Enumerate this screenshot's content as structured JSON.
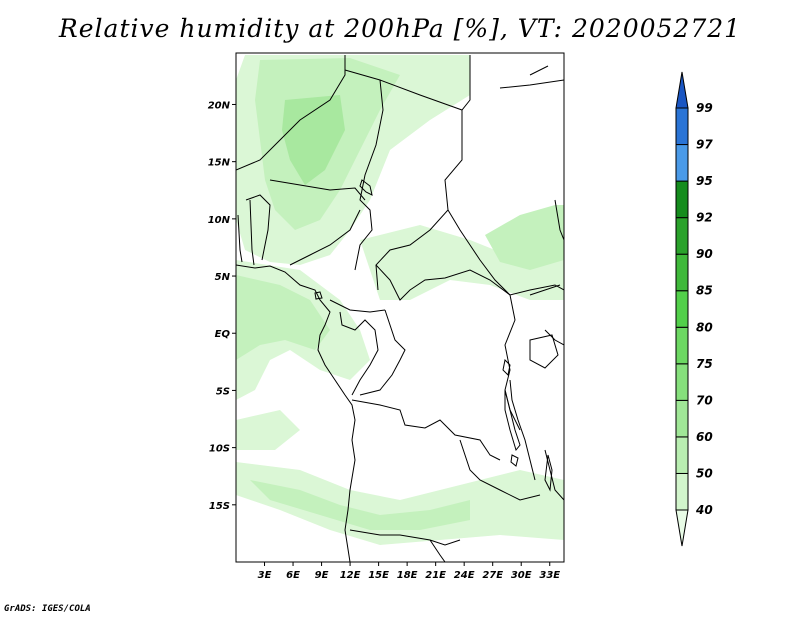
{
  "title": "Relative humidity at 200hPa [%], VT: 2020052721",
  "credit": "GrADS: IGES/COLA",
  "map": {
    "lat_ticks": [
      "20N",
      "15N",
      "10N",
      "5N",
      "EQ",
      "5S",
      "10S",
      "15S"
    ],
    "lon_ticks": [
      "3E",
      "6E",
      "9E",
      "12E",
      "15E",
      "18E",
      "21E",
      "24E",
      "27E",
      "30E",
      "33E"
    ],
    "lat_values": [
      20,
      15,
      10,
      5,
      0,
      -5,
      -10,
      -15
    ],
    "lon_values": [
      3,
      6,
      9,
      12,
      15,
      18,
      21,
      24,
      27,
      30,
      33
    ],
    "lat_range": [
      -20,
      24.5
    ],
    "lon_range": [
      0,
      34.5
    ]
  },
  "colorbar": {
    "levels": [
      "40",
      "50",
      "60",
      "70",
      "75",
      "80",
      "85",
      "90",
      "92",
      "95",
      "97",
      "99"
    ],
    "colors": [
      "#e8fbe6",
      "#d2f5cc",
      "#b9eeb1",
      "#a0e797",
      "#86e07c",
      "#6cd862",
      "#52d04a",
      "#3fb93a",
      "#2aa22b",
      "#158c1d",
      "#4a9ae8",
      "#2a74d6",
      "#1a56c2"
    ]
  },
  "field_colors": [
    "#dbf7d6",
    "#c4f1bd",
    "#a8e89f"
  ]
}
